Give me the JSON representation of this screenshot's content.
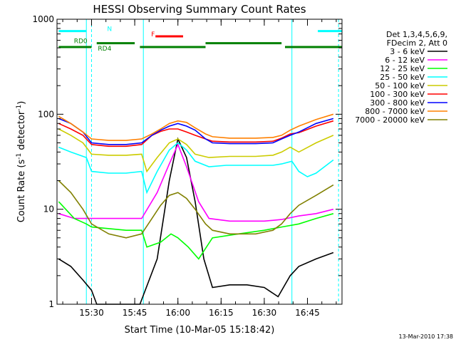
{
  "chart_data": {
    "type": "line",
    "title": "HESSI Observing Summary Count Rates",
    "xlabel": "Start Time (10-Mar-05 15:18:42)",
    "ylabel_parts": [
      "Count Rate (s",
      "-1",
      " detector",
      "-1",
      ")"
    ],
    "yscale": "log",
    "ylim": [
      1,
      1000
    ],
    "xlim_minutes": [
      15.3,
      16.95
    ],
    "x_ticks": [
      "15:30",
      "15:45",
      "16:00",
      "16:15",
      "16:30",
      "16:45"
    ],
    "y_ticks": [
      "1",
      "10",
      "100",
      "1000"
    ],
    "legend_header": [
      "Det 1,3,4,5,6,9,",
      "FDecim 2, Att 0"
    ],
    "legend_position": "right",
    "series": [
      {
        "name": "3 - 6 keV",
        "color": "#000000",
        "values": [
          [
            15.31,
            3
          ],
          [
            15.38,
            2.5
          ],
          [
            15.45,
            1.8
          ],
          [
            15.5,
            1.4
          ],
          [
            15.53,
            1
          ],
          [
            15.78,
            1
          ],
          [
            15.88,
            3
          ],
          [
            15.95,
            20
          ],
          [
            16.0,
            55
          ],
          [
            16.05,
            35
          ],
          [
            16.1,
            12
          ],
          [
            16.15,
            3
          ],
          [
            16.2,
            1.5
          ],
          [
            16.3,
            1.6
          ],
          [
            16.4,
            1.6
          ],
          [
            16.5,
            1.5
          ],
          [
            16.58,
            1.2
          ],
          [
            16.65,
            2
          ],
          [
            16.7,
            2.5
          ],
          [
            16.8,
            3
          ],
          [
            16.9,
            3.5
          ]
        ]
      },
      {
        "name": "6 - 12 keV",
        "color": "#ff00ff",
        "values": [
          [
            15.31,
            9
          ],
          [
            15.4,
            8
          ],
          [
            15.5,
            8
          ],
          [
            15.7,
            8
          ],
          [
            15.79,
            8
          ],
          [
            15.88,
            15
          ],
          [
            15.95,
            30
          ],
          [
            16.0,
            48
          ],
          [
            16.05,
            28
          ],
          [
            16.12,
            12
          ],
          [
            16.18,
            8
          ],
          [
            16.3,
            7.5
          ],
          [
            16.5,
            7.5
          ],
          [
            16.6,
            7.8
          ],
          [
            16.7,
            8.5
          ],
          [
            16.8,
            9
          ],
          [
            16.9,
            10
          ]
        ]
      },
      {
        "name": "12 - 25 keV",
        "color": "#00ff00",
        "values": [
          [
            15.31,
            12
          ],
          [
            15.4,
            8
          ],
          [
            15.47,
            7
          ],
          [
            15.5,
            6.5
          ],
          [
            15.7,
            6
          ],
          [
            15.79,
            6
          ],
          [
            15.82,
            4
          ],
          [
            15.9,
            4.5
          ],
          [
            15.96,
            5.5
          ],
          [
            16.0,
            5
          ],
          [
            16.06,
            4
          ],
          [
            16.12,
            3
          ],
          [
            16.2,
            5
          ],
          [
            16.35,
            5.5
          ],
          [
            16.5,
            6
          ],
          [
            16.6,
            6.5
          ],
          [
            16.7,
            7
          ],
          [
            16.8,
            8
          ],
          [
            16.9,
            9
          ]
        ]
      },
      {
        "name": "25 - 50 keV",
        "color": "#00ffff",
        "values": [
          [
            15.31,
            45
          ],
          [
            15.38,
            40
          ],
          [
            15.47,
            35
          ],
          [
            15.5,
            25
          ],
          [
            15.6,
            24
          ],
          [
            15.7,
            24
          ],
          [
            15.79,
            25
          ],
          [
            15.82,
            15
          ],
          [
            15.88,
            25
          ],
          [
            15.95,
            42
          ],
          [
            16.0,
            50
          ],
          [
            16.05,
            42
          ],
          [
            16.1,
            32
          ],
          [
            16.18,
            28
          ],
          [
            16.28,
            29
          ],
          [
            16.4,
            29
          ],
          [
            16.55,
            29
          ],
          [
            16.6,
            30
          ],
          [
            16.66,
            32
          ],
          [
            16.7,
            25
          ],
          [
            16.75,
            22
          ],
          [
            16.8,
            24
          ],
          [
            16.9,
            33
          ]
        ]
      },
      {
        "name": "50 - 100 keV",
        "color": "#cccc00",
        "values": [
          [
            15.31,
            70
          ],
          [
            15.38,
            60
          ],
          [
            15.45,
            50
          ],
          [
            15.5,
            38
          ],
          [
            15.6,
            37
          ],
          [
            15.7,
            37
          ],
          [
            15.79,
            38
          ],
          [
            15.82,
            25
          ],
          [
            15.88,
            35
          ],
          [
            15.95,
            50
          ],
          [
            16.0,
            55
          ],
          [
            16.05,
            48
          ],
          [
            16.1,
            38
          ],
          [
            16.18,
            35
          ],
          [
            16.3,
            36
          ],
          [
            16.45,
            36
          ],
          [
            16.55,
            37
          ],
          [
            16.6,
            40
          ],
          [
            16.65,
            45
          ],
          [
            16.7,
            40
          ],
          [
            16.8,
            50
          ],
          [
            16.9,
            60
          ]
        ]
      },
      {
        "name": "100 - 300 keV",
        "color": "#ff0000",
        "values": [
          [
            15.31,
            80
          ],
          [
            15.38,
            70
          ],
          [
            15.45,
            60
          ],
          [
            15.5,
            48
          ],
          [
            15.6,
            46
          ],
          [
            15.7,
            46
          ],
          [
            15.79,
            48
          ],
          [
            15.85,
            60
          ],
          [
            15.9,
            66
          ],
          [
            15.95,
            70
          ],
          [
            16.0,
            70
          ],
          [
            16.05,
            65
          ],
          [
            16.1,
            60
          ],
          [
            16.16,
            55
          ],
          [
            16.2,
            52
          ],
          [
            16.3,
            51
          ],
          [
            16.45,
            51
          ],
          [
            16.55,
            52
          ],
          [
            16.6,
            56
          ],
          [
            16.65,
            62
          ],
          [
            16.7,
            64
          ],
          [
            16.8,
            75
          ],
          [
            16.9,
            85
          ]
        ]
      },
      {
        "name": "300 - 800 keV",
        "color": "#0000ff",
        "values": [
          [
            15.31,
            90
          ],
          [
            15.38,
            80
          ],
          [
            15.45,
            65
          ],
          [
            15.5,
            50
          ],
          [
            15.6,
            48
          ],
          [
            15.7,
            48
          ],
          [
            15.79,
            50
          ],
          [
            15.85,
            60
          ],
          [
            15.9,
            68
          ],
          [
            15.95,
            75
          ],
          [
            16.0,
            80
          ],
          [
            16.05,
            75
          ],
          [
            16.1,
            68
          ],
          [
            16.16,
            55
          ],
          [
            16.2,
            50
          ],
          [
            16.3,
            49
          ],
          [
            16.45,
            49
          ],
          [
            16.55,
            50
          ],
          [
            16.6,
            55
          ],
          [
            16.65,
            60
          ],
          [
            16.7,
            65
          ],
          [
            16.8,
            80
          ],
          [
            16.9,
            90
          ]
        ]
      },
      {
        "name": "800 - 7000 keV",
        "color": "#ff8000",
        "values": [
          [
            15.31,
            95
          ],
          [
            15.38,
            80
          ],
          [
            15.45,
            65
          ],
          [
            15.5,
            55
          ],
          [
            15.6,
            53
          ],
          [
            15.7,
            53
          ],
          [
            15.79,
            55
          ],
          [
            15.85,
            62
          ],
          [
            15.9,
            70
          ],
          [
            15.95,
            80
          ],
          [
            16.0,
            85
          ],
          [
            16.05,
            82
          ],
          [
            16.1,
            72
          ],
          [
            16.16,
            62
          ],
          [
            16.2,
            58
          ],
          [
            16.3,
            56
          ],
          [
            16.45,
            56
          ],
          [
            16.55,
            57
          ],
          [
            16.6,
            60
          ],
          [
            16.65,
            68
          ],
          [
            16.7,
            75
          ],
          [
            16.8,
            88
          ],
          [
            16.9,
            100
          ]
        ]
      },
      {
        "name": "7000 - 20000 keV",
        "color": "#808000",
        "values": [
          [
            15.31,
            20
          ],
          [
            15.38,
            15
          ],
          [
            15.45,
            10
          ],
          [
            15.5,
            7
          ],
          [
            15.6,
            5.5
          ],
          [
            15.7,
            5
          ],
          [
            15.79,
            5.5
          ],
          [
            15.85,
            8
          ],
          [
            15.9,
            11
          ],
          [
            15.95,
            14
          ],
          [
            16.0,
            15
          ],
          [
            16.05,
            13
          ],
          [
            16.1,
            10
          ],
          [
            16.16,
            7
          ],
          [
            16.2,
            6
          ],
          [
            16.3,
            5.5
          ],
          [
            16.45,
            5.5
          ],
          [
            16.55,
            6
          ],
          [
            16.6,
            7
          ],
          [
            16.65,
            9
          ],
          [
            16.7,
            11
          ],
          [
            16.8,
            14
          ],
          [
            16.9,
            18
          ]
        ]
      }
    ],
    "annotations": [
      {
        "label": "N",
        "color": "#00ffff",
        "x0": 15.31,
        "x1": 15.47,
        "y": 750
      },
      {
        "label": "",
        "color": "#00ffff",
        "x0": 16.81,
        "x1": 16.95,
        "y": 750
      },
      {
        "label": "RD0",
        "color": "#008000",
        "x0": 15.53,
        "x1": 15.75,
        "y": 560
      },
      {
        "label": "RD4",
        "color": "#008000",
        "x0": 15.31,
        "x1": 15.5,
        "y": 510
      },
      {
        "label": "",
        "color": "#008000",
        "x0": 15.78,
        "x1": 16.16,
        "y": 510
      },
      {
        "label": "",
        "color": "#008000",
        "x0": 16.16,
        "x1": 16.6,
        "y": 560
      },
      {
        "label": "",
        "color": "#008000",
        "x0": 16.62,
        "x1": 16.95,
        "y": 510
      },
      {
        "label": "F",
        "color": "#ff0000",
        "x0": 15.87,
        "x1": 16.03,
        "y": 660
      }
    ],
    "cyan_vlines": [
      15.47,
      15.8,
      16.66
    ],
    "cyan_dashed_vlines": [
      15.5,
      16.93
    ]
  },
  "timestamp": "13-Mar-2010 17:38"
}
